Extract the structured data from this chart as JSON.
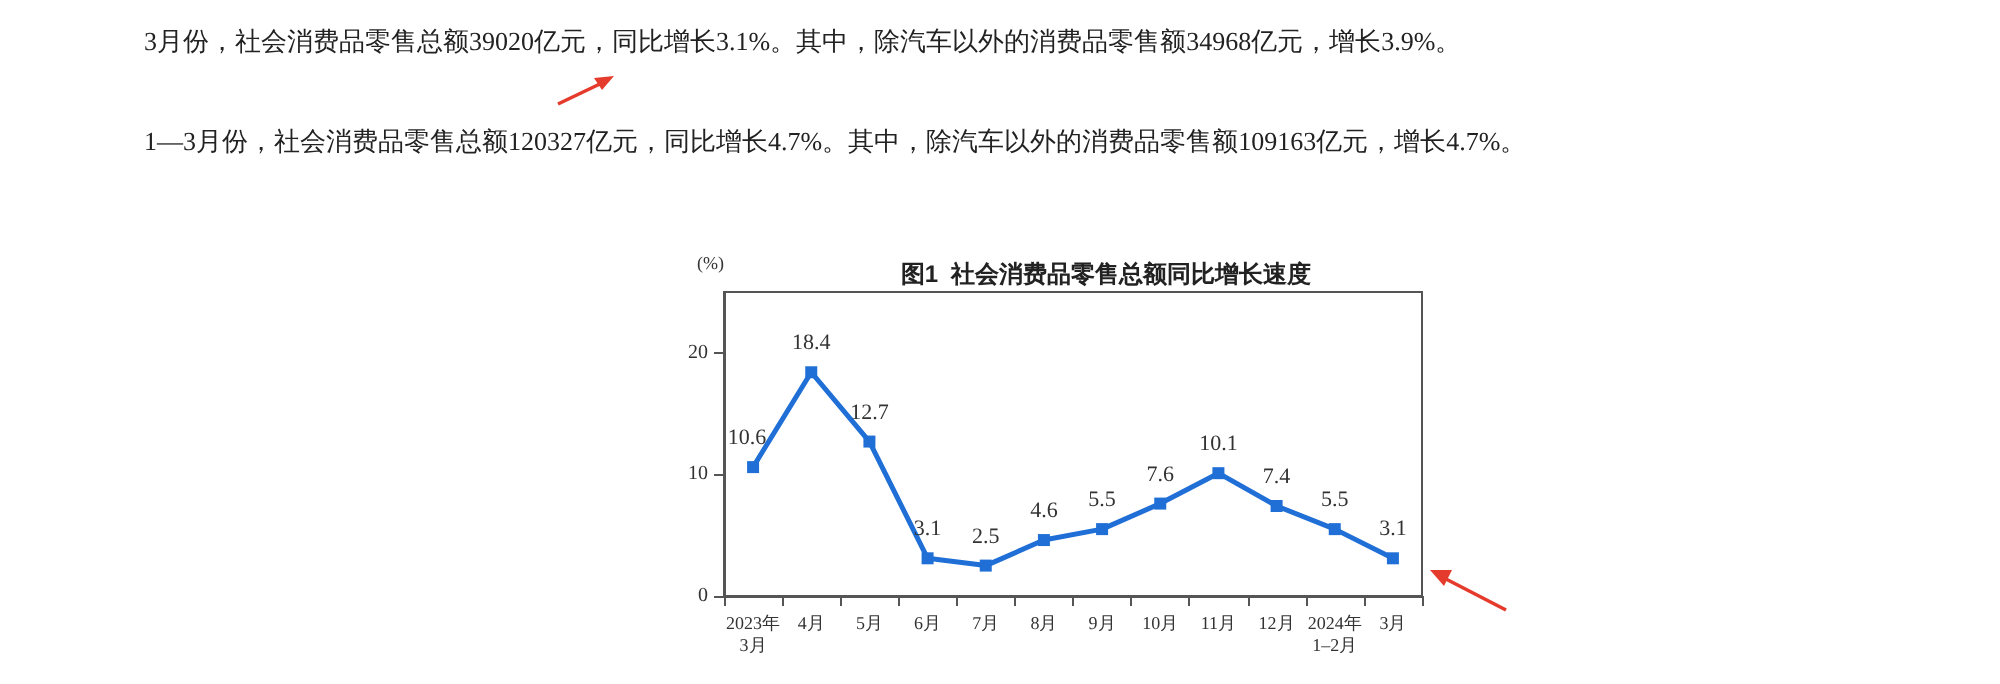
{
  "chart_data": {
    "type": "line",
    "title": "图1  社会消费品零售总额同比增长速度",
    "ylabel": "(%)",
    "annotations": [
      "3月份，社会消费品零售总额39020亿元，同比增长3.1%。其中，除汽车以外的消费品零售额34968亿元，增长3.9%。",
      "1—3月份，社会消费品零售总额120327亿元，同比增长4.7%。其中，除汽车以外的消费品零售额109163亿元，增长4.7%。"
    ],
    "categories": [
      "2023年\n3月",
      "4月",
      "5月",
      "6月",
      "7月",
      "8月",
      "9月",
      "10月",
      "11月",
      "12月",
      "2024年\n1–2月",
      "3月"
    ],
    "series": [
      {
        "color": "#1f6fd6",
        "values": [
          10.6,
          18.4,
          12.7,
          3.1,
          2.5,
          4.6,
          5.5,
          7.6,
          10.1,
          7.4,
          5.5,
          3.1
        ]
      }
    ],
    "ylim": [
      0,
      25
    ],
    "yticks": [
      0,
      10,
      20
    ],
    "grid": false,
    "marker": "square",
    "line_style": "solid",
    "data_labels": true
  }
}
